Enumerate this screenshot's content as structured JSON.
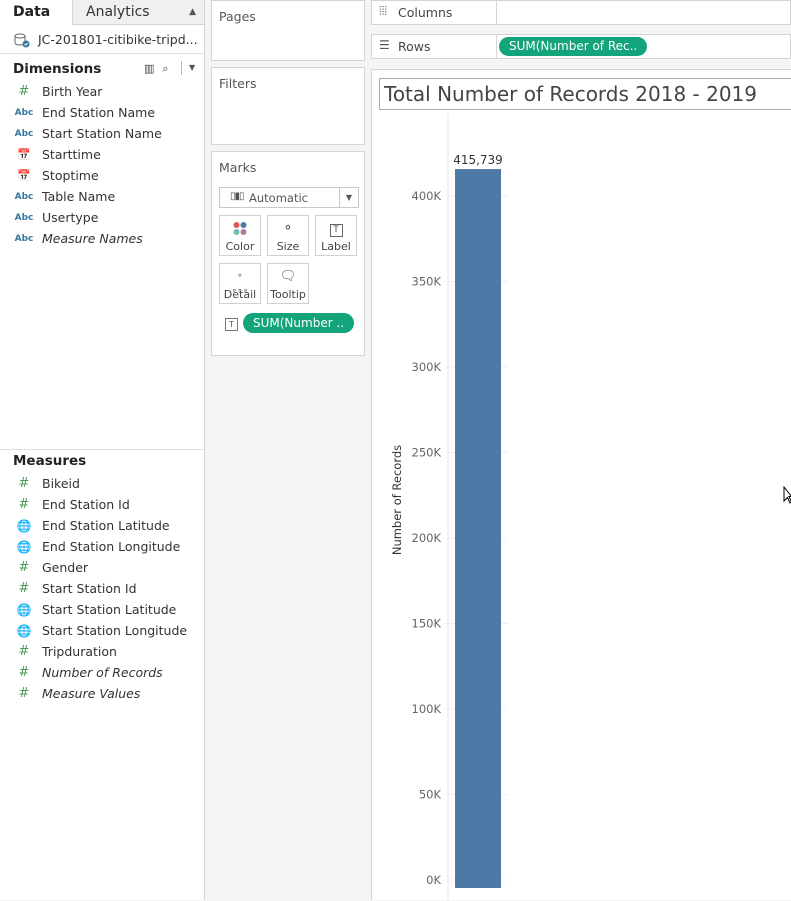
{
  "tabs": {
    "data": "Data",
    "analytics": "Analytics"
  },
  "datasource": {
    "name": "JC-201801-citibike-tripd..."
  },
  "dimensions": {
    "heading": "Dimensions",
    "items": [
      {
        "label": "Birth Year",
        "icon": "hash-icon"
      },
      {
        "label": "End Station Name",
        "icon": "abc-icon"
      },
      {
        "label": "Start Station Name",
        "icon": "abc-icon"
      },
      {
        "label": "Starttime",
        "icon": "calendar-icon"
      },
      {
        "label": "Stoptime",
        "icon": "calendar-icon"
      },
      {
        "label": "Table Name",
        "icon": "abc-icon"
      },
      {
        "label": "Usertype",
        "icon": "abc-icon"
      },
      {
        "label": "Measure Names",
        "icon": "abc-icon"
      }
    ]
  },
  "measures": {
    "heading": "Measures",
    "items": [
      {
        "label": "Bikeid",
        "icon": "hash-icon"
      },
      {
        "label": "End Station Id",
        "icon": "hash-icon"
      },
      {
        "label": "End Station Latitude",
        "icon": "globe-icon"
      },
      {
        "label": "End Station Longitude",
        "icon": "globe-icon"
      },
      {
        "label": "Gender",
        "icon": "hash-icon"
      },
      {
        "label": "Start Station Id",
        "icon": "hash-icon"
      },
      {
        "label": "Start Station Latitude",
        "icon": "globe-icon"
      },
      {
        "label": "Start Station Longitude",
        "icon": "globe-icon"
      },
      {
        "label": "Tripduration",
        "icon": "hash-icon"
      },
      {
        "label": "Number of Records",
        "icon": "hash-icon"
      },
      {
        "label": "Measure Values",
        "icon": "hash-icon"
      }
    ]
  },
  "cards": {
    "pages": "Pages",
    "filters": "Filters",
    "marks": "Marks"
  },
  "marks": {
    "type": "Automatic",
    "buttons": {
      "color": "Color",
      "size": "Size",
      "label": "Label",
      "detail": "Detail",
      "tooltip": "Tooltip"
    },
    "pill": "SUM(Number .."
  },
  "shelves": {
    "columns": "Columns",
    "rows": "Rows",
    "rows_pill": "SUM(Number of Rec.."
  },
  "colors": {
    "pill": "#13a47b",
    "bar": "#4e79a7"
  },
  "chart_data": {
    "type": "bar",
    "title": "Total Number of Records 2018 - 2019",
    "ylabel": "Number of Records",
    "values": [
      415739
    ],
    "data_labels": [
      "415,739"
    ],
    "ylim": [
      0,
      420000
    ],
    "y_ticks": [
      0,
      50000,
      100000,
      150000,
      200000,
      250000,
      300000,
      350000,
      400000
    ],
    "y_tick_labels": [
      "0K",
      "50K",
      "100K",
      "150K",
      "200K",
      "250K",
      "300K",
      "350K",
      "400K"
    ],
    "grid": true
  }
}
